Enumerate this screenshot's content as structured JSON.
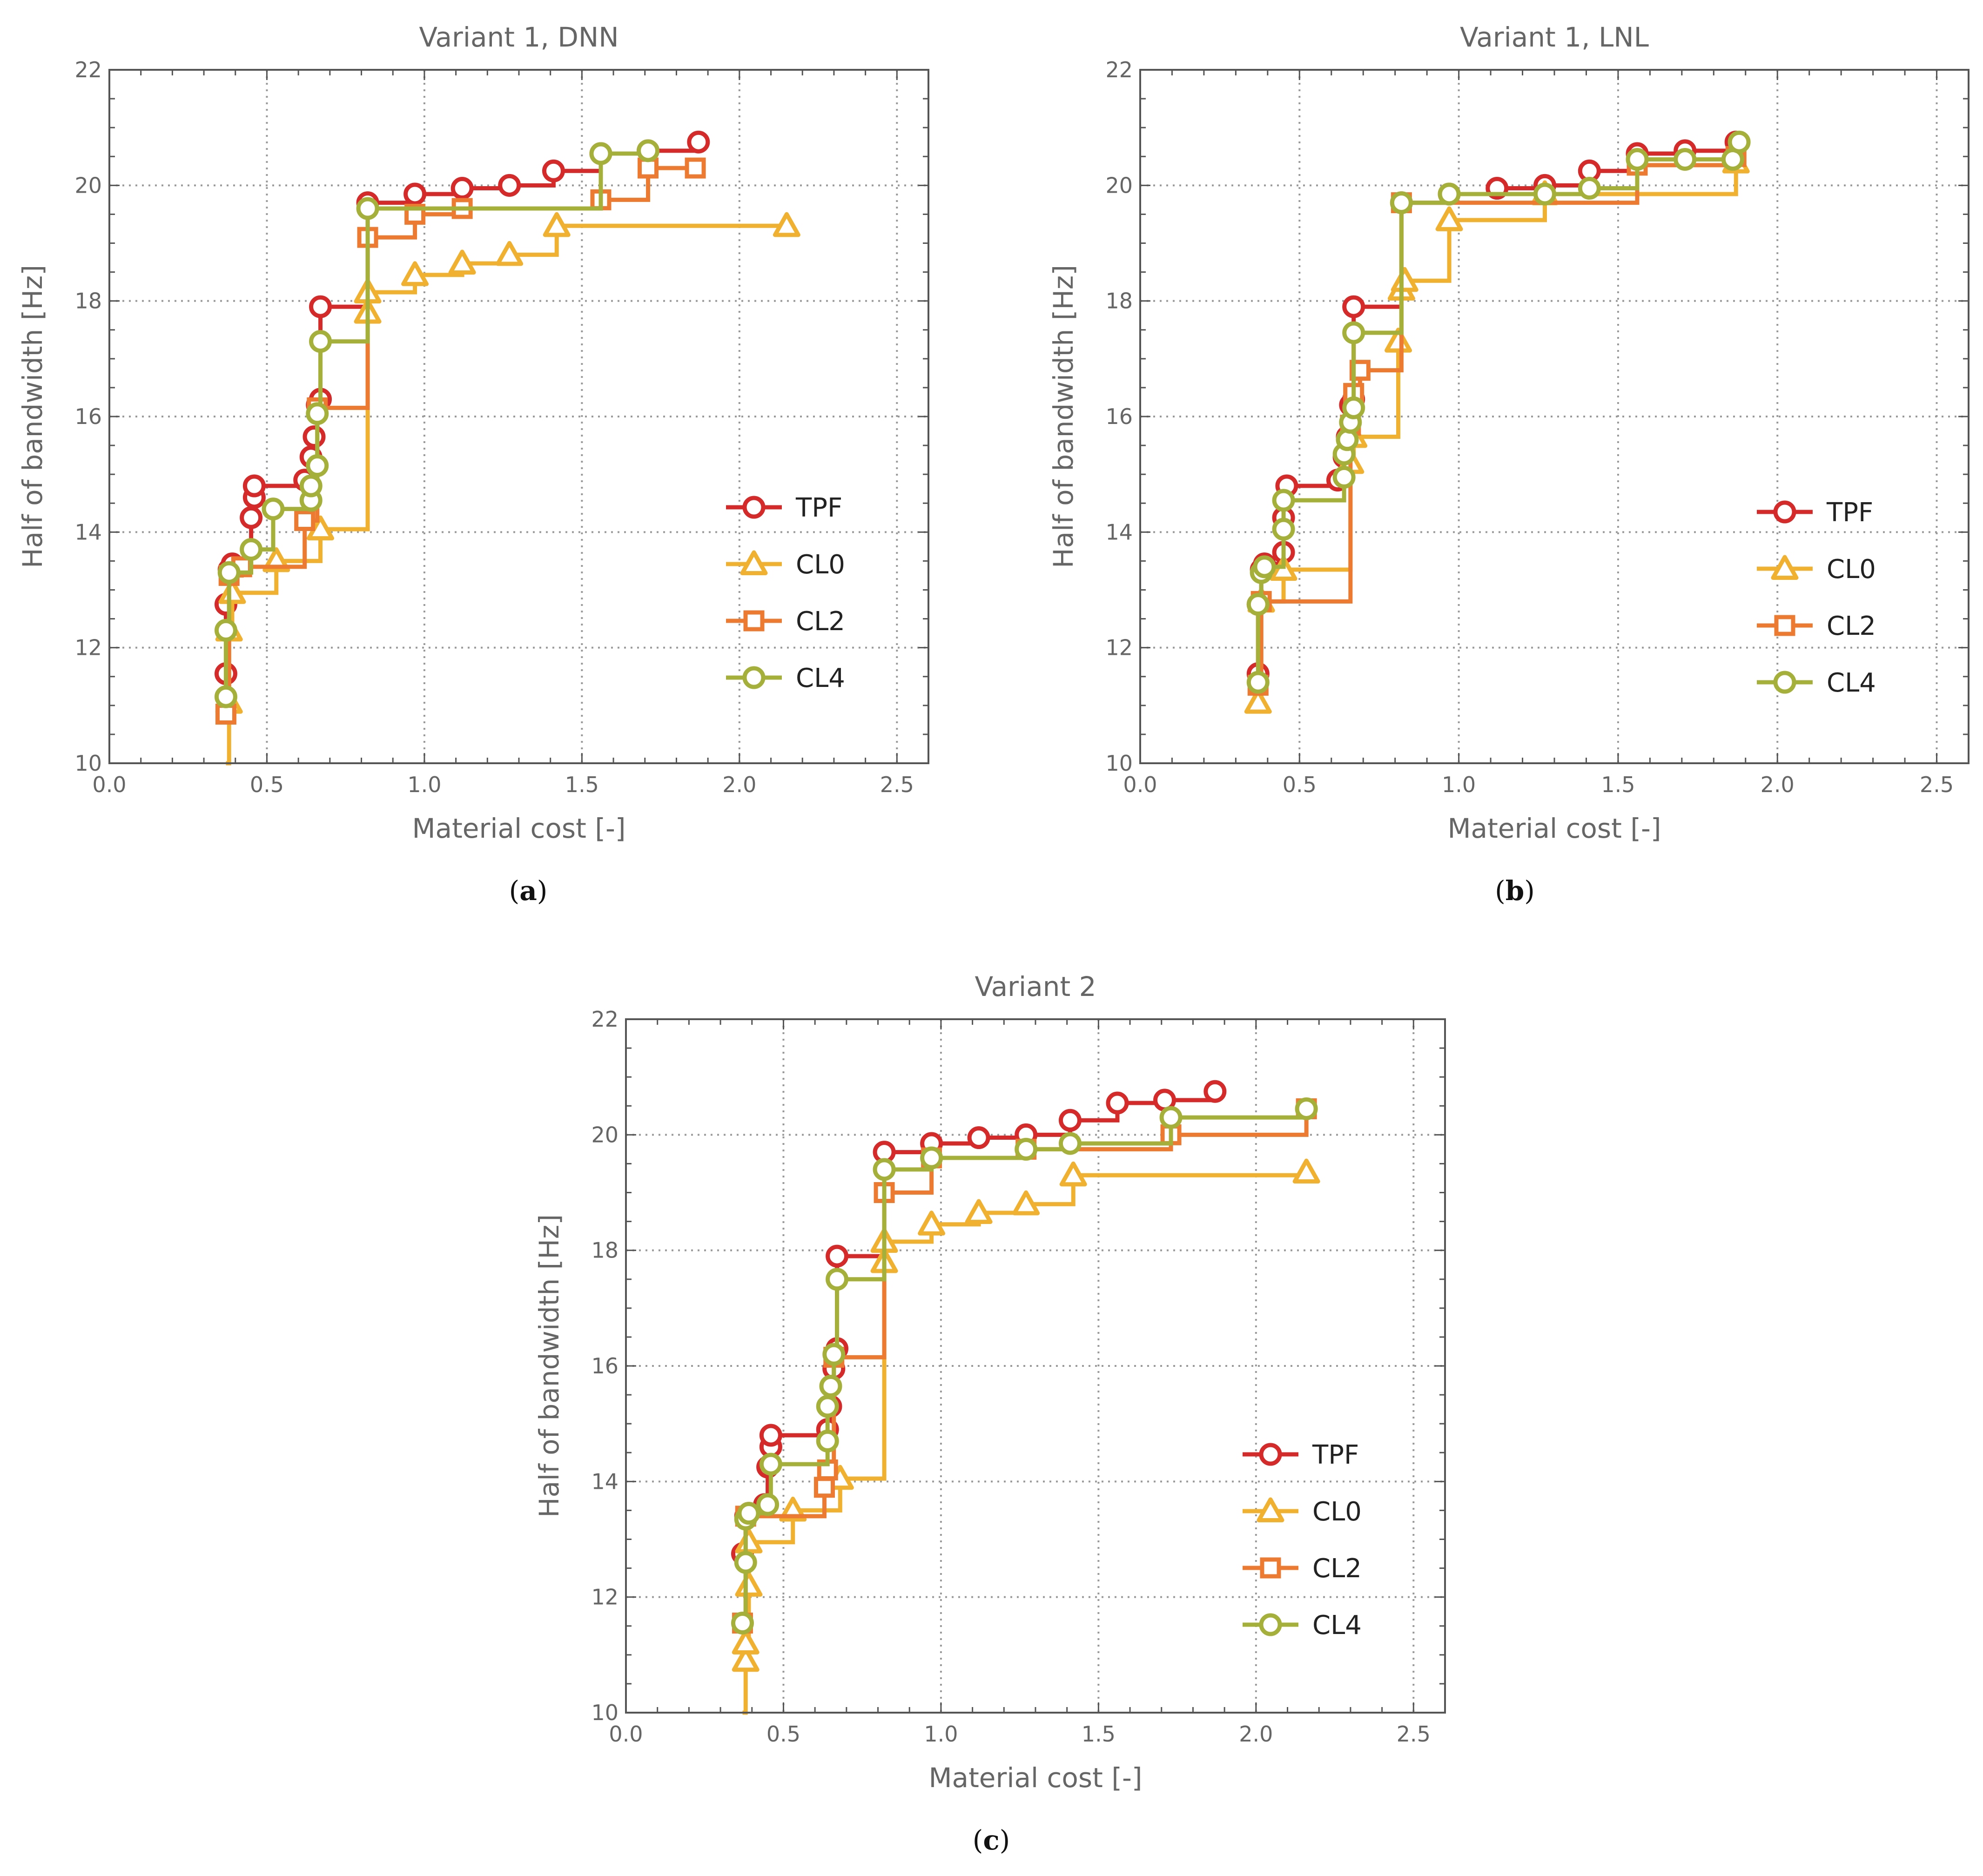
{
  "colors": {
    "TPF": "#d42a2a",
    "CL0": "#f0b030",
    "CL2": "#ec7a30",
    "CL4": "#a5b03a",
    "axis": "#555555",
    "grid": "#9a9a9a",
    "text": "#666666"
  },
  "captions": [
    "a",
    "b",
    "c"
  ],
  "chart_data": [
    {
      "type": "line",
      "step": true,
      "title": "Variant 1, DNN",
      "xlabel": "Material cost [-]",
      "ylabel": "Half of bandwidth [Hz]",
      "xlim": [
        0,
        2.6
      ],
      "ylim": [
        10,
        22
      ],
      "xticks": [
        0.0,
        0.5,
        1.0,
        1.5,
        2.0,
        2.5
      ],
      "xtick_labels": [
        "0.0",
        "0.5",
        "1.0",
        "1.5",
        "2.0",
        "2.5"
      ],
      "yticks": [
        10,
        12,
        14,
        16,
        18,
        20,
        22
      ],
      "ytick_labels": [
        "10",
        "12",
        "14",
        "16",
        "18",
        "20",
        "22"
      ],
      "legend": [
        "TPF",
        "CL0",
        "CL2",
        "CL4"
      ],
      "legend_position": "lower-right",
      "series": [
        {
          "name": "TPF",
          "marker": "circle",
          "points": [
            [
              0.37,
              11.55
            ],
            [
              0.37,
              12.75
            ],
            [
              0.38,
              13.35
            ],
            [
              0.39,
              13.45
            ],
            [
              0.45,
              14.25
            ],
            [
              0.46,
              14.6
            ],
            [
              0.46,
              14.8
            ],
            [
              0.62,
              14.9
            ],
            [
              0.64,
              15.3
            ],
            [
              0.65,
              15.65
            ],
            [
              0.66,
              16.2
            ],
            [
              0.67,
              16.3
            ],
            [
              0.67,
              17.9
            ],
            [
              0.82,
              19.7
            ],
            [
              0.97,
              19.85
            ],
            [
              1.12,
              19.95
            ],
            [
              1.27,
              20.0
            ],
            [
              1.41,
              20.25
            ],
            [
              1.56,
              20.55
            ],
            [
              1.71,
              20.6
            ],
            [
              1.87,
              20.75
            ]
          ]
        },
        {
          "name": "CL0",
          "marker": "triangle",
          "points": [
            [
              0.37,
              10.0
            ],
            [
              0.38,
              11.05
            ],
            [
              0.38,
              12.3
            ],
            [
              0.39,
              12.95
            ],
            [
              0.53,
              13.5
            ],
            [
              0.67,
              14.05
            ],
            [
              0.82,
              17.8
            ],
            [
              0.82,
              18.15
            ],
            [
              0.97,
              18.45
            ],
            [
              1.12,
              18.65
            ],
            [
              1.27,
              18.8
            ],
            [
              1.42,
              19.3
            ],
            [
              2.15,
              19.3
            ]
          ]
        },
        {
          "name": "CL2",
          "marker": "square",
          "points": [
            [
              0.37,
              10.85
            ],
            [
              0.38,
              13.25
            ],
            [
              0.42,
              13.4
            ],
            [
              0.62,
              14.2
            ],
            [
              0.66,
              16.15
            ],
            [
              0.82,
              19.1
            ],
            [
              0.97,
              19.5
            ],
            [
              1.12,
              19.6
            ],
            [
              1.56,
              19.75
            ],
            [
              1.71,
              20.3
            ],
            [
              1.86,
              20.3
            ]
          ]
        },
        {
          "name": "CL4",
          "marker": "circle",
          "points": [
            [
              0.37,
              11.15
            ],
            [
              0.37,
              12.3
            ],
            [
              0.38,
              13.3
            ],
            [
              0.45,
              13.7
            ],
            [
              0.52,
              14.4
            ],
            [
              0.64,
              14.55
            ],
            [
              0.64,
              14.8
            ],
            [
              0.66,
              15.15
            ],
            [
              0.66,
              16.05
            ],
            [
              0.67,
              17.3
            ],
            [
              0.82,
              19.6
            ],
            [
              1.56,
              20.55
            ],
            [
              1.71,
              20.6
            ]
          ]
        }
      ]
    },
    {
      "type": "line",
      "step": true,
      "title": "Variant 1, LNL",
      "xlabel": "Material cost [-]",
      "ylabel": "Half of bandwidth [Hz]",
      "xlim": [
        0,
        2.6
      ],
      "ylim": [
        10,
        22
      ],
      "xticks": [
        0.0,
        0.5,
        1.0,
        1.5,
        2.0,
        2.5
      ],
      "xtick_labels": [
        "0.0",
        "0.5",
        "1.0",
        "1.5",
        "2.0",
        "2.5"
      ],
      "yticks": [
        10,
        12,
        14,
        16,
        18,
        20,
        22
      ],
      "ytick_labels": [
        "10",
        "12",
        "14",
        "16",
        "18",
        "20",
        "22"
      ],
      "legend": [
        "TPF",
        "CL0",
        "CL2",
        "CL4"
      ],
      "legend_position": "lower-right",
      "series": [
        {
          "name": "TPF",
          "marker": "circle",
          "points": [
            [
              0.37,
              11.55
            ],
            [
              0.37,
              12.75
            ],
            [
              0.38,
              13.35
            ],
            [
              0.39,
              13.45
            ],
            [
              0.45,
              13.65
            ],
            [
              0.45,
              14.25
            ],
            [
              0.46,
              14.8
            ],
            [
              0.62,
              14.9
            ],
            [
              0.64,
              15.3
            ],
            [
              0.65,
              15.65
            ],
            [
              0.66,
              16.2
            ],
            [
              0.67,
              16.3
            ],
            [
              0.67,
              17.9
            ],
            [
              0.82,
              19.7
            ],
            [
              0.97,
              19.85
            ],
            [
              1.12,
              19.95
            ],
            [
              1.27,
              20.0
            ],
            [
              1.41,
              20.25
            ],
            [
              1.56,
              20.55
            ],
            [
              1.71,
              20.6
            ],
            [
              1.87,
              20.75
            ]
          ]
        },
        {
          "name": "CL0",
          "marker": "triangle",
          "points": [
            [
              0.37,
              11.05
            ],
            [
              0.38,
              12.8
            ],
            [
              0.45,
              13.35
            ],
            [
              0.66,
              15.2
            ],
            [
              0.67,
              15.65
            ],
            [
              0.81,
              17.3
            ],
            [
              0.82,
              18.2
            ],
            [
              0.83,
              18.35
            ],
            [
              0.97,
              19.4
            ],
            [
              1.27,
              19.85
            ],
            [
              1.87,
              20.4
            ]
          ]
        },
        {
          "name": "CL2",
          "marker": "square",
          "points": [
            [
              0.37,
              11.35
            ],
            [
              0.38,
              12.8
            ],
            [
              0.66,
              15.85
            ],
            [
              0.67,
              16.4
            ],
            [
              0.69,
              16.8
            ],
            [
              0.82,
              19.7
            ],
            [
              1.56,
              20.35
            ],
            [
              1.87,
              20.5
            ]
          ]
        },
        {
          "name": "CL4",
          "marker": "circle",
          "points": [
            [
              0.37,
              11.4
            ],
            [
              0.37,
              12.75
            ],
            [
              0.38,
              13.3
            ],
            [
              0.39,
              13.4
            ],
            [
              0.45,
              14.05
            ],
            [
              0.45,
              14.55
            ],
            [
              0.64,
              14.95
            ],
            [
              0.64,
              15.35
            ],
            [
              0.65,
              15.6
            ],
            [
              0.66,
              15.9
            ],
            [
              0.67,
              16.15
            ],
            [
              0.67,
              17.45
            ],
            [
              0.82,
              19.7
            ],
            [
              0.97,
              19.85
            ],
            [
              1.27,
              19.85
            ],
            [
              1.41,
              19.95
            ],
            [
              1.56,
              20.45
            ],
            [
              1.71,
              20.45
            ],
            [
              1.86,
              20.45
            ],
            [
              1.88,
              20.75
            ]
          ]
        }
      ]
    },
    {
      "type": "line",
      "step": true,
      "title": "Variant 2",
      "xlabel": "Material cost [-]",
      "ylabel": "Half of bandwidth [Hz]",
      "xlim": [
        0,
        2.6
      ],
      "ylim": [
        10,
        22
      ],
      "xticks": [
        0.0,
        0.5,
        1.0,
        1.5,
        2.0,
        2.5
      ],
      "xtick_labels": [
        "0.0",
        "0.5",
        "1.0",
        "1.5",
        "2.0",
        "2.5"
      ],
      "yticks": [
        10,
        12,
        14,
        16,
        18,
        20,
        22
      ],
      "ytick_labels": [
        "10",
        "12",
        "14",
        "16",
        "18",
        "20",
        "22"
      ],
      "legend": [
        "TPF",
        "CL0",
        "CL2",
        "CL4"
      ],
      "legend_position": "lower-right",
      "series": [
        {
          "name": "TPF",
          "marker": "circle",
          "points": [
            [
              0.37,
              12.75
            ],
            [
              0.38,
              13.4
            ],
            [
              0.39,
              13.45
            ],
            [
              0.44,
              13.6
            ],
            [
              0.45,
              14.25
            ],
            [
              0.46,
              14.6
            ],
            [
              0.46,
              14.8
            ],
            [
              0.64,
              14.9
            ],
            [
              0.65,
              15.3
            ],
            [
              0.66,
              15.95
            ],
            [
              0.67,
              16.3
            ],
            [
              0.67,
              17.9
            ],
            [
              0.82,
              19.7
            ],
            [
              0.97,
              19.85
            ],
            [
              1.12,
              19.95
            ],
            [
              1.27,
              20.0
            ],
            [
              1.41,
              20.25
            ],
            [
              1.56,
              20.55
            ],
            [
              1.71,
              20.6
            ],
            [
              1.87,
              20.75
            ]
          ]
        },
        {
          "name": "CL0",
          "marker": "triangle",
          "points": [
            [
              0.37,
              10.0
            ],
            [
              0.38,
              10.9
            ],
            [
              0.38,
              11.2
            ],
            [
              0.39,
              12.2
            ],
            [
              0.39,
              12.95
            ],
            [
              0.53,
              13.5
            ],
            [
              0.68,
              14.05
            ],
            [
              0.82,
              17.8
            ],
            [
              0.82,
              18.15
            ],
            [
              0.97,
              18.45
            ],
            [
              1.12,
              18.65
            ],
            [
              1.27,
              18.8
            ],
            [
              1.42,
              19.3
            ],
            [
              2.16,
              19.35
            ]
          ]
        },
        {
          "name": "CL2",
          "marker": "square",
          "points": [
            [
              0.37,
              11.55
            ],
            [
              0.38,
              13.4
            ],
            [
              0.63,
              13.9
            ],
            [
              0.64,
              14.2
            ],
            [
              0.66,
              16.15
            ],
            [
              0.82,
              19.0
            ],
            [
              0.97,
              19.6
            ],
            [
              1.27,
              19.75
            ],
            [
              1.73,
              20.0
            ],
            [
              2.16,
              20.45
            ]
          ]
        },
        {
          "name": "CL4",
          "marker": "circle",
          "points": [
            [
              0.37,
              11.55
            ],
            [
              0.38,
              12.6
            ],
            [
              0.38,
              13.35
            ],
            [
              0.39,
              13.45
            ],
            [
              0.45,
              13.6
            ],
            [
              0.46,
              14.3
            ],
            [
              0.64,
              14.7
            ],
            [
              0.64,
              15.3
            ],
            [
              0.65,
              15.65
            ],
            [
              0.66,
              16.2
            ],
            [
              0.67,
              17.5
            ],
            [
              0.82,
              19.4
            ],
            [
              0.97,
              19.6
            ],
            [
              1.27,
              19.75
            ],
            [
              1.41,
              19.85
            ],
            [
              1.73,
              20.3
            ],
            [
              2.16,
              20.45
            ]
          ]
        }
      ]
    }
  ]
}
